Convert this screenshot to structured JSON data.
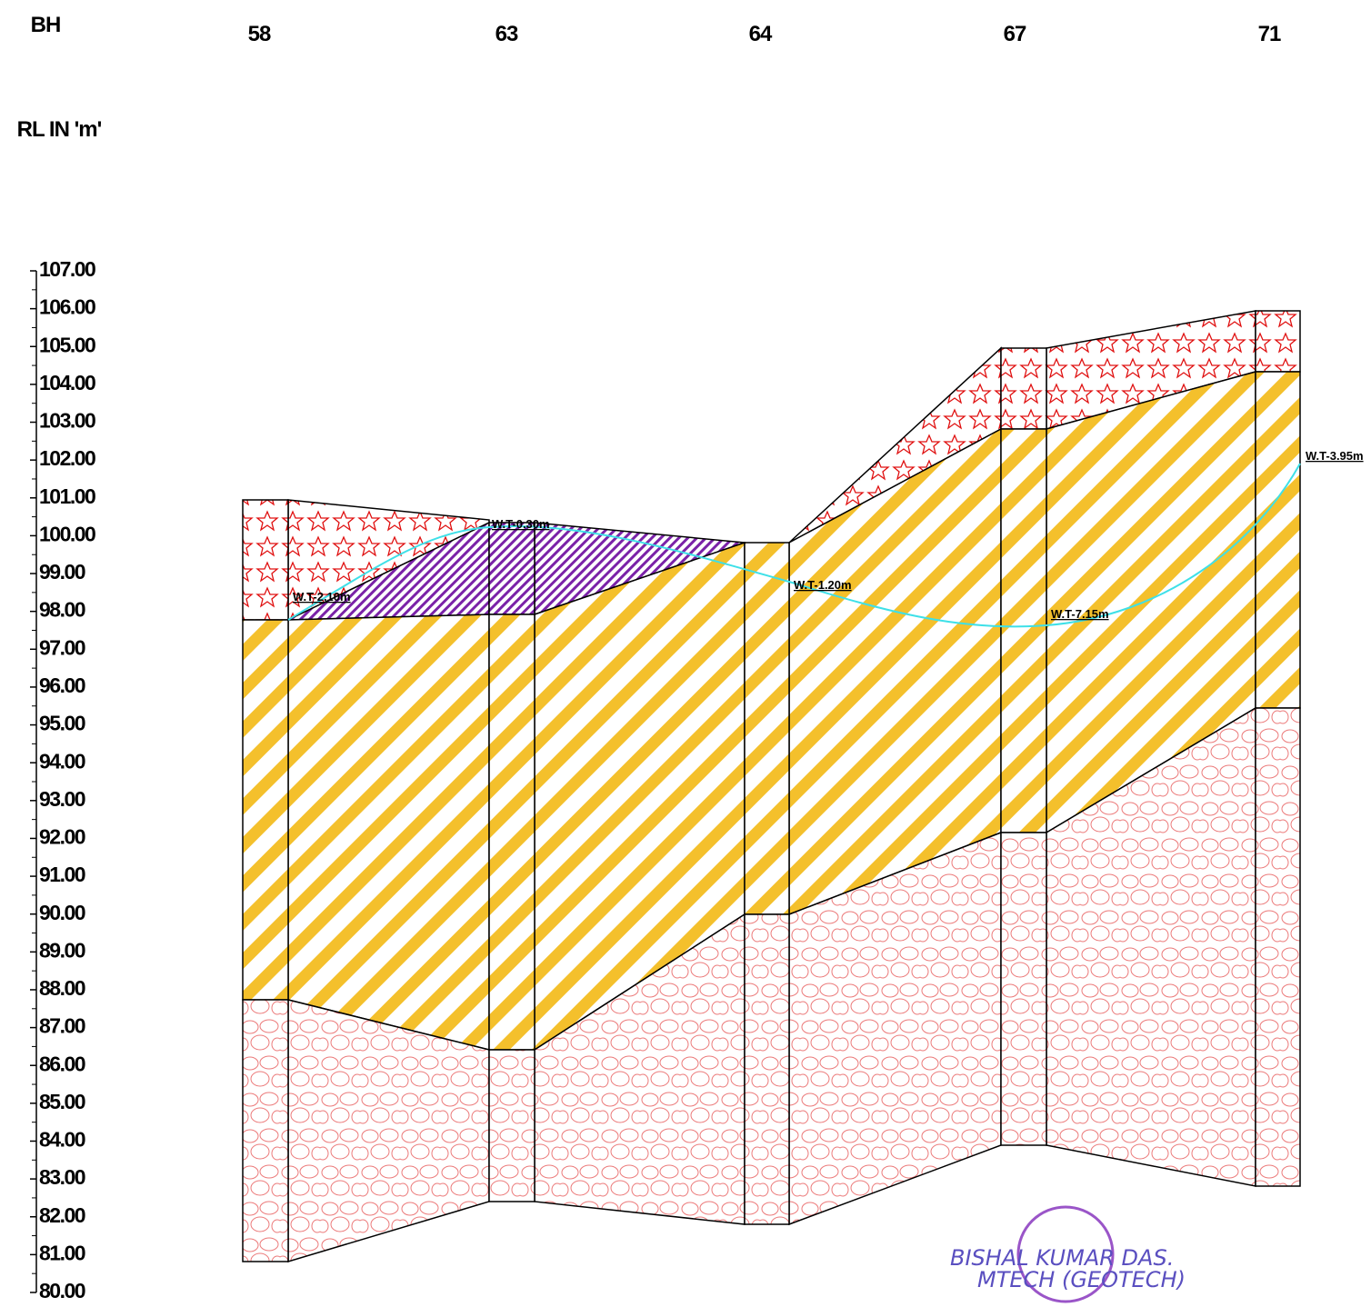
{
  "header": {
    "bh_label": "BH",
    "rl_label": "RL IN 'm'"
  },
  "boreholes": [
    {
      "label": "58"
    },
    {
      "label": "63"
    },
    {
      "label": "64"
    },
    {
      "label": "67"
    },
    {
      "label": "71"
    }
  ],
  "rl_scale": {
    "labels": [
      "107.00",
      "106.00",
      "105.00",
      "104.00",
      "103.00",
      "102.00",
      "101.00",
      "100.00",
      "99.00",
      "98.00",
      "97.00",
      "96.00",
      "95.00",
      "94.00",
      "93.00",
      "92.00",
      "91.00",
      "90.00",
      "89.00",
      "88.00",
      "87.00",
      "86.00",
      "85.00",
      "84.00",
      "83.00",
      "82.00",
      "81.00",
      "80.00"
    ]
  },
  "water_tables": [
    "W.T-2.10m",
    "W.T-0.30m",
    "W.T-1.20m",
    "W.T-7.15m",
    "W.T-3.95m"
  ],
  "signature": {
    "name": "BISHAL KUMAR DAS.",
    "degree": "MTECH (GEOTECH)"
  }
}
